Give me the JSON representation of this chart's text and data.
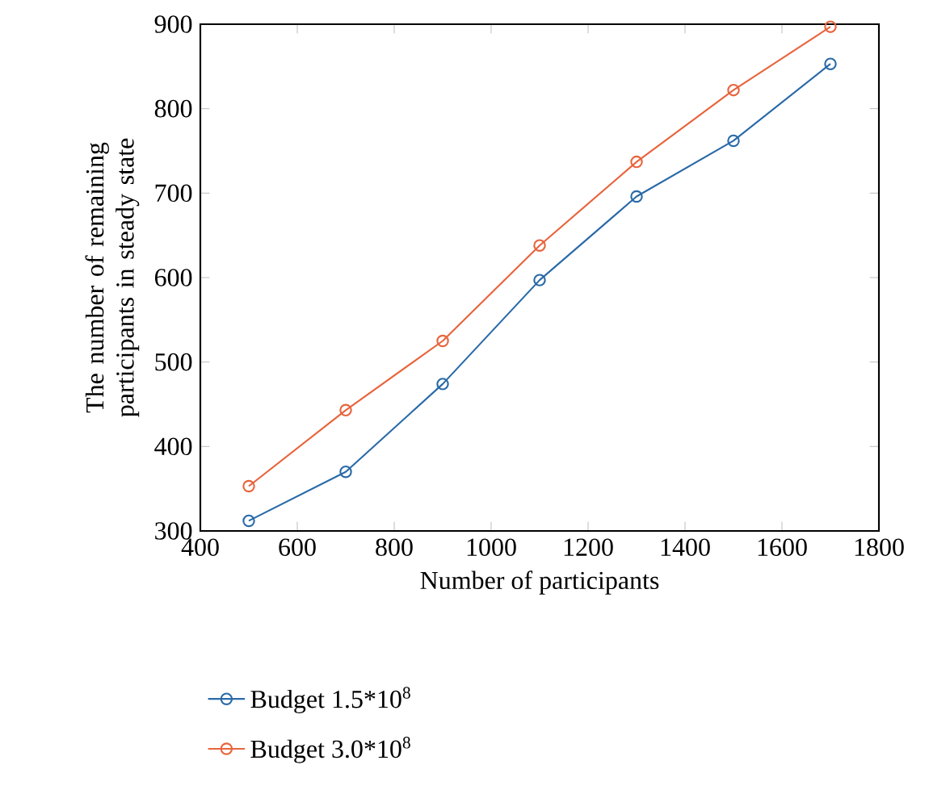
{
  "chart_data": {
    "type": "line",
    "xlabel": "Number of participants",
    "ylabel": "The number of remaining participants in steady state",
    "x": [
      500,
      700,
      900,
      1100,
      1300,
      1500,
      1700
    ],
    "series": [
      {
        "name": "Budget 1.5*10$^{8}$",
        "color": "#2a6aa8",
        "values": [
          312,
          370,
          474,
          597,
          696,
          762,
          853
        ]
      },
      {
        "name": "Budget 3.0*10$^{8}$",
        "color": "#e8643c",
        "values": [
          353,
          443,
          525,
          638,
          737,
          822,
          897
        ]
      }
    ],
    "xlim": [
      400,
      1800
    ],
    "ylim": [
      300,
      900
    ],
    "xticks": [
      400,
      600,
      800,
      1000,
      1200,
      1400,
      1600,
      1800
    ],
    "yticks": [
      300,
      400,
      500,
      600,
      700,
      800,
      900
    ],
    "grid": false,
    "legend": "bottom",
    "marker": "circle",
    "line_style": "solid"
  }
}
